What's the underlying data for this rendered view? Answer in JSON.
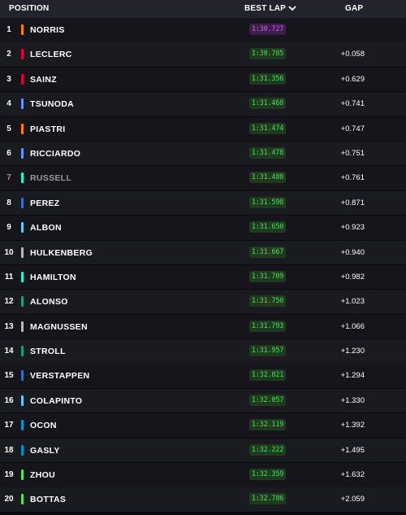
{
  "header": {
    "position_label": "POSITION",
    "best_lap_label": "BEST LAP",
    "gap_label": "GAP"
  },
  "colors": {
    "purple_lap_bg": "#3a1f4a",
    "purple_lap_text": "#d45cf2",
    "green_lap_bg": "#1f3a1f",
    "green_lap_text": "#49e05a"
  },
  "rows": [
    {
      "pos": "1",
      "name": "NORRIS",
      "team_color": "#ff8000",
      "lap": "1:30.727",
      "lap_style": "purple",
      "gap": "",
      "dim": false
    },
    {
      "pos": "2",
      "name": "LECLERC",
      "team_color": "#e8002d",
      "lap": "1:30.785",
      "lap_style": "green",
      "gap": "+0.058",
      "dim": false
    },
    {
      "pos": "3",
      "name": "SAINZ",
      "team_color": "#e8002d",
      "lap": "1:31.356",
      "lap_style": "green",
      "gap": "+0.629",
      "dim": false
    },
    {
      "pos": "4",
      "name": "TSUNODA",
      "team_color": "#6692ff",
      "lap": "1:31.468",
      "lap_style": "green",
      "gap": "+0.741",
      "dim": false
    },
    {
      "pos": "5",
      "name": "PIASTRI",
      "team_color": "#ff8000",
      "lap": "1:31.474",
      "lap_style": "green",
      "gap": "+0.747",
      "dim": false
    },
    {
      "pos": "6",
      "name": "RICCIARDO",
      "team_color": "#6692ff",
      "lap": "1:31.478",
      "lap_style": "green",
      "gap": "+0.751",
      "dim": false
    },
    {
      "pos": "7",
      "name": "RUSSELL",
      "team_color": "#27f4d2",
      "lap": "1:31.488",
      "lap_style": "green",
      "gap": "+0.761",
      "dim": true
    },
    {
      "pos": "8",
      "name": "PEREZ",
      "team_color": "#3671c6",
      "lap": "1:31.598",
      "lap_style": "green",
      "gap": "+0.871",
      "dim": false
    },
    {
      "pos": "9",
      "name": "ALBON",
      "team_color": "#64c4ff",
      "lap": "1:31.650",
      "lap_style": "green",
      "gap": "+0.923",
      "dim": false
    },
    {
      "pos": "10",
      "name": "HULKENBERG",
      "team_color": "#b6babd",
      "lap": "1:31.667",
      "lap_style": "green",
      "gap": "+0.940",
      "dim": false
    },
    {
      "pos": "11",
      "name": "HAMILTON",
      "team_color": "#27f4d2",
      "lap": "1:31.709",
      "lap_style": "green",
      "gap": "+0.982",
      "dim": false
    },
    {
      "pos": "12",
      "name": "ALONSO",
      "team_color": "#229971",
      "lap": "1:31.750",
      "lap_style": "green",
      "gap": "+1.023",
      "dim": false
    },
    {
      "pos": "13",
      "name": "MAGNUSSEN",
      "team_color": "#b6babd",
      "lap": "1:31.793",
      "lap_style": "green",
      "gap": "+1.066",
      "dim": false
    },
    {
      "pos": "14",
      "name": "STROLL",
      "team_color": "#229971",
      "lap": "1:31.957",
      "lap_style": "green",
      "gap": "+1.230",
      "dim": false
    },
    {
      "pos": "15",
      "name": "VERSTAPPEN",
      "team_color": "#3671c6",
      "lap": "1:32.021",
      "lap_style": "green",
      "gap": "+1.294",
      "dim": false
    },
    {
      "pos": "16",
      "name": "COLAPINTO",
      "team_color": "#64c4ff",
      "lap": "1:32.057",
      "lap_style": "green",
      "gap": "+1.330",
      "dim": false
    },
    {
      "pos": "17",
      "name": "OCON",
      "team_color": "#0093cc",
      "lap": "1:32.119",
      "lap_style": "green",
      "gap": "+1.392",
      "dim": false
    },
    {
      "pos": "18",
      "name": "GASLY",
      "team_color": "#0093cc",
      "lap": "1:32.222",
      "lap_style": "green",
      "gap": "+1.495",
      "dim": false
    },
    {
      "pos": "19",
      "name": "ZHOU",
      "team_color": "#52e252",
      "lap": "1:32.359",
      "lap_style": "green",
      "gap": "+1.632",
      "dim": false
    },
    {
      "pos": "20",
      "name": "BOTTAS",
      "team_color": "#52e252",
      "lap": "1:32.786",
      "lap_style": "green",
      "gap": "+2.059",
      "dim": false
    }
  ]
}
